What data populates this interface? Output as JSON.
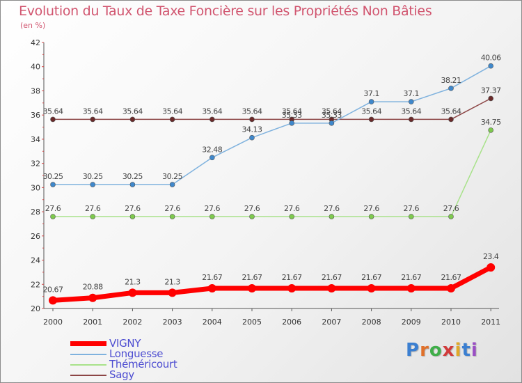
{
  "title": "Evolution du Taux de Taxe Foncière sur les Propriétés Non Bâties",
  "unit_label": "(en %)",
  "logo": {
    "text": "Proxiti",
    "letter_colors": [
      "#3b7fd1",
      "#e0702a",
      "#3fae49",
      "#d13b3b",
      "#e0a92a",
      "#3b7fd1",
      "#9a4fc4"
    ]
  },
  "chart_data": {
    "type": "line",
    "title": "Evolution du Taux de Taxe Foncière sur les Propriétés Non Bâties",
    "ylabel": "(en %)",
    "xlabel": "",
    "ylim": [
      20,
      42
    ],
    "yticks": [
      20,
      22,
      24,
      26,
      28,
      30,
      32,
      34,
      36,
      38,
      40,
      42
    ],
    "grid": false,
    "legend_position": "bottom-left",
    "x": [
      "2000",
      "2001",
      "2002",
      "2003",
      "2004",
      "2005",
      "2006",
      "2007",
      "2008",
      "2009",
      "2010",
      "2011"
    ],
    "series": [
      {
        "name": "VIGNY",
        "color": "#ff0000",
        "point_color": "#ff0000",
        "width": 7,
        "radius": 6,
        "values": [
          20.67,
          20.88,
          21.3,
          21.3,
          21.67,
          21.67,
          21.67,
          21.67,
          21.67,
          21.67,
          21.67,
          23.4
        ],
        "labels": [
          "20.67",
          "20.88",
          "21.3",
          "21.3",
          "21.67",
          "21.67",
          "21.67",
          "21.67",
          "21.67",
          "21.67",
          "21.67",
          "23.4"
        ]
      },
      {
        "name": "Longuesse",
        "color": "#7fb2de",
        "point_color": "#3f88cc",
        "width": 1.5,
        "radius": 3.5,
        "values": [
          30.25,
          30.25,
          30.25,
          30.25,
          32.48,
          34.13,
          35.33,
          35.33,
          37.1,
          37.1,
          38.21,
          40.06
        ],
        "labels": [
          "30.25",
          "30.25",
          "30.25",
          "30.25",
          "32.48",
          "34.13",
          "35.33",
          "35.33",
          "37.1",
          "37.1",
          "38.21",
          "40.06"
        ]
      },
      {
        "name": "Théméricourt",
        "color": "#a8e28a",
        "point_color": "#7ec94e",
        "width": 1.5,
        "radius": 3.5,
        "values": [
          27.6,
          27.6,
          27.6,
          27.6,
          27.6,
          27.6,
          27.6,
          27.6,
          27.6,
          27.6,
          27.6,
          34.75
        ],
        "labels": [
          "27.6",
          "27.6",
          "27.6",
          "27.6",
          "27.6",
          "27.6",
          "27.6",
          "27.6",
          "27.6",
          "27.6",
          "27.6",
          "34.75"
        ]
      },
      {
        "name": "Sagy",
        "color": "#8c4545",
        "point_color": "#6b2a2a",
        "width": 1.5,
        "radius": 3.5,
        "values": [
          35.64,
          35.64,
          35.64,
          35.64,
          35.64,
          35.64,
          35.64,
          35.64,
          35.64,
          35.64,
          35.64,
          37.37
        ],
        "labels": [
          "35.64",
          "35.64",
          "35.64",
          "35.64",
          "35.64",
          "35.64",
          "35.64",
          "35.64",
          "35.64",
          "35.64",
          "35.64",
          "37.37"
        ]
      }
    ]
  }
}
